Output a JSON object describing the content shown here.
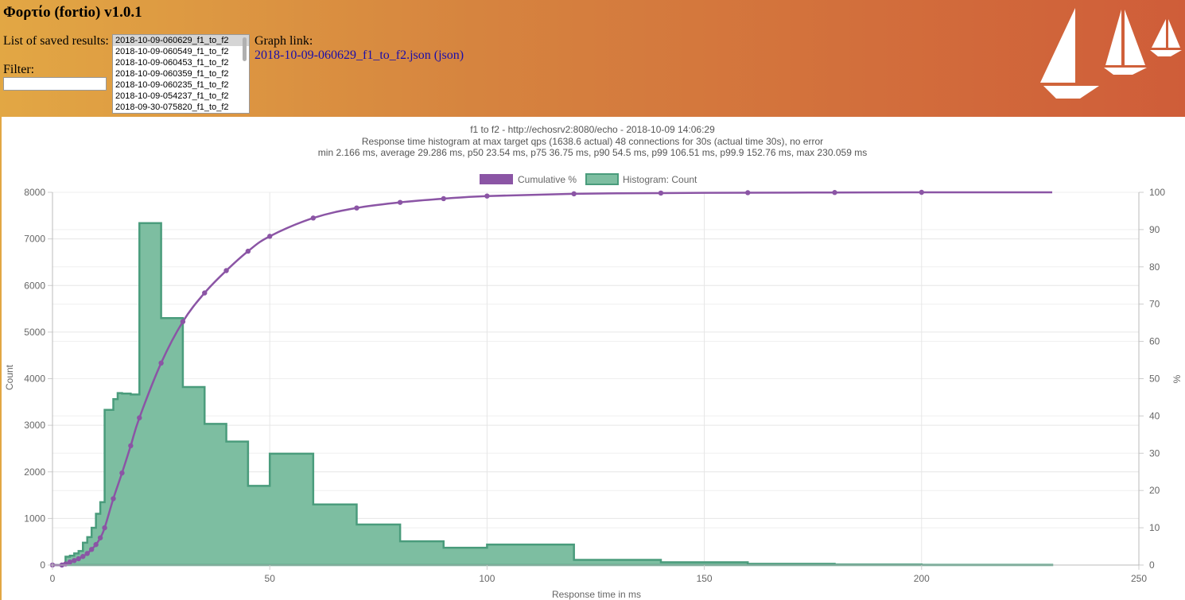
{
  "app": {
    "title": "Φορτίο (fortio) v1.0.1"
  },
  "saved": {
    "label": "List of saved results:",
    "items": [
      "2018-10-09-060629_f1_to_f2",
      "2018-10-09-060549_f1_to_f2",
      "2018-10-09-060453_f1_to_f2",
      "2018-10-09-060359_f1_to_f2",
      "2018-10-09-060235_f1_to_f2",
      "2018-10-09-054237_f1_to_f2",
      "2018-09-30-075820_f1_to_f2"
    ],
    "selected": "2018-10-09-060629_f1_to_f2"
  },
  "filter": {
    "label": "Filter:",
    "value": ""
  },
  "graph": {
    "label": "Graph link:",
    "link_text": "2018-10-09-060629_f1_to_f2.json",
    "json_link_text": "json"
  },
  "colors": {
    "histogram_fill": "#7dbea1",
    "histogram_stroke": "#4a9c7c",
    "cumulative": "#8b55a5"
  },
  "chart_data": {
    "type": "bar",
    "title": "f1 to f2 - http://echosrv2:8080/echo - 2018-10-09 14:06:29",
    "subtitle_lines": [
      "Response time histogram at max target qps (1638.6 actual) 48 connections for 30s (actual time 30s), no error",
      "min 2.166 ms, average 29.286 ms, p50 23.54 ms, p75 36.75 ms, p90 54.5 ms, p99 106.51 ms, p99.9 152.76 ms, max 230.059 ms"
    ],
    "xlabel": "Response time in ms",
    "ylabel_left": "Count",
    "ylabel_right": "%",
    "xlim": [
      0,
      250
    ],
    "ylim_left": [
      0,
      8000
    ],
    "ylim_right": [
      0,
      100
    ],
    "x_ticks": [
      0,
      50,
      100,
      150,
      200,
      250
    ],
    "y_ticks_left": [
      0,
      1000,
      2000,
      3000,
      4000,
      5000,
      6000,
      7000,
      8000
    ],
    "y_ticks_right": [
      0,
      10,
      20,
      30,
      40,
      50,
      60,
      70,
      80,
      90,
      100
    ],
    "legend": {
      "position": "top",
      "entries": [
        "Cumulative %",
        "Histogram: Count"
      ]
    },
    "grid": true,
    "series": [
      {
        "name": "Histogram: Count",
        "type": "step-area",
        "points": [
          [
            0,
            0
          ],
          [
            2.166,
            0
          ],
          [
            3,
            180
          ],
          [
            4,
            200
          ],
          [
            5,
            250
          ],
          [
            6,
            300
          ],
          [
            7,
            480
          ],
          [
            8,
            600
          ],
          [
            9,
            800
          ],
          [
            10,
            1100
          ],
          [
            11,
            1350
          ],
          [
            12,
            3330
          ],
          [
            14,
            3560
          ],
          [
            15,
            3690
          ],
          [
            16,
            3680
          ],
          [
            18,
            3660
          ],
          [
            20,
            7340
          ],
          [
            25,
            5300
          ],
          [
            30,
            3820
          ],
          [
            35,
            3030
          ],
          [
            40,
            2650
          ],
          [
            45,
            1700
          ],
          [
            50,
            2390
          ],
          [
            60,
            1300
          ],
          [
            70,
            870
          ],
          [
            80,
            510
          ],
          [
            90,
            370
          ],
          [
            100,
            440
          ],
          [
            120,
            110
          ],
          [
            140,
            60
          ],
          [
            160,
            25
          ],
          [
            180,
            10
          ],
          [
            200,
            5
          ],
          [
            230.059,
            0
          ]
        ]
      },
      {
        "name": "Cumulative %",
        "type": "line",
        "points": [
          [
            0,
            0
          ],
          [
            2.166,
            0
          ],
          [
            3,
            0.3
          ],
          [
            4,
            0.8
          ],
          [
            5,
            1.2
          ],
          [
            6,
            1.7
          ],
          [
            7,
            2.3
          ],
          [
            8,
            3.1
          ],
          [
            9,
            4.2
          ],
          [
            10,
            5.5
          ],
          [
            11,
            7.3
          ],
          [
            12,
            10
          ],
          [
            14,
            17.8
          ],
          [
            16,
            24.7
          ],
          [
            18,
            32
          ],
          [
            20,
            39.5
          ],
          [
            25,
            54.2
          ],
          [
            30,
            65.3
          ],
          [
            35,
            73
          ],
          [
            40,
            79
          ],
          [
            45,
            84.2
          ],
          [
            50,
            88.2
          ],
          [
            60,
            93.1
          ],
          [
            70,
            95.8
          ],
          [
            80,
            97.3
          ],
          [
            90,
            98.3
          ],
          [
            100,
            99
          ],
          [
            120,
            99.6
          ],
          [
            140,
            99.8
          ],
          [
            160,
            99.9
          ],
          [
            180,
            99.95
          ],
          [
            200,
            100
          ],
          [
            230.059,
            100
          ]
        ]
      }
    ]
  }
}
